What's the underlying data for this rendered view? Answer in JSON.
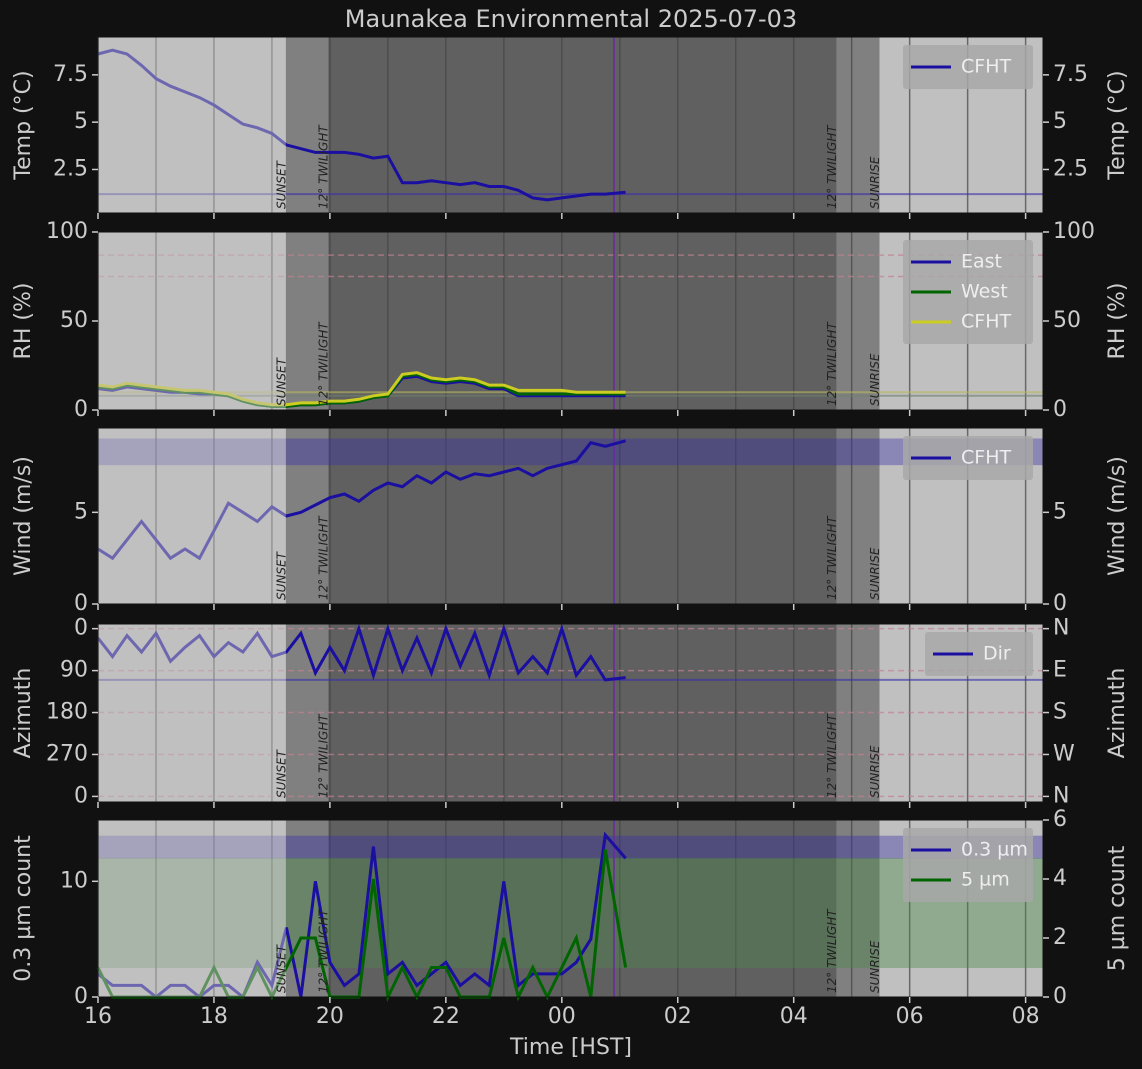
{
  "title": "Maunakea Environmental 2025-07-03",
  "xlabel": "Time [HST]",
  "xlim": [
    16,
    32.3
  ],
  "xticks": [
    16,
    18,
    20,
    22,
    {
      "value": 24,
      "label": "00"
    },
    {
      "value": 26,
      "label": "02"
    },
    {
      "value": 28,
      "label": "04"
    },
    {
      "value": 30,
      "label": "06"
    },
    {
      "value": 32,
      "label": "08"
    }
  ],
  "events": [
    {
      "x": 19.24,
      "label": "SUNSET"
    },
    {
      "x": 19.97,
      "label": "12° TWILIGHT"
    },
    {
      "x": 28.74,
      "label": "12° TWILIGHT"
    },
    {
      "x": 29.48,
      "label": "SUNRISE"
    }
  ],
  "now": 24.9,
  "chart_data": [
    {
      "type": "line",
      "ylabel": "Temp (°C)",
      "ylim": [
        0.2,
        9.5
      ],
      "yticks": [
        2.5,
        5.0,
        7.5
      ],
      "legend": "upper right",
      "x": [
        16,
        16.25,
        16.5,
        16.75,
        17,
        17.25,
        17.5,
        17.75,
        18,
        18.25,
        18.5,
        18.75,
        19,
        19.25,
        19.5,
        19.75,
        20,
        20.25,
        20.5,
        20.75,
        21,
        21.25,
        21.5,
        21.75,
        22,
        22.25,
        22.5,
        22.75,
        23,
        23.25,
        23.5,
        23.75,
        24,
        24.25,
        24.5,
        24.75,
        25.1
      ],
      "series": [
        {
          "name": "CFHT",
          "color": "#1a0fa0",
          "values": [
            8.6,
            8.8,
            8.6,
            8.0,
            7.3,
            6.9,
            6.6,
            6.3,
            5.9,
            5.4,
            4.9,
            4.7,
            4.4,
            3.8,
            3.6,
            3.4,
            3.4,
            3.4,
            3.3,
            3.1,
            3.2,
            1.8,
            1.8,
            1.9,
            1.8,
            1.7,
            1.8,
            1.6,
            1.6,
            1.4,
            1.0,
            0.9,
            1.0,
            1.1,
            1.2,
            1.2,
            1.3
          ]
        }
      ],
      "hlines": [
        {
          "value": 1.2,
          "color": "#3a30a8"
        }
      ]
    },
    {
      "type": "line",
      "ylabel": "RH (%)",
      "ylim": [
        0,
        100
      ],
      "yticks": [
        0,
        50,
        100
      ],
      "legend": "upper right",
      "dashed": [
        75,
        87
      ],
      "x": [
        16,
        16.25,
        16.5,
        16.75,
        17,
        17.25,
        17.5,
        17.75,
        18,
        18.25,
        18.5,
        18.75,
        19,
        19.25,
        19.5,
        19.75,
        20,
        20.25,
        20.5,
        20.75,
        21,
        21.25,
        21.5,
        21.75,
        22,
        22.25,
        22.5,
        22.75,
        23,
        23.25,
        23.5,
        23.75,
        24,
        24.25,
        24.5,
        24.75,
        25.1
      ],
      "series": [
        {
          "name": "East",
          "color": "#1a0fa0",
          "values": [
            12,
            11,
            13,
            12,
            11,
            10,
            10,
            9,
            9,
            8,
            5,
            3,
            2,
            2,
            3,
            3,
            4,
            4,
            5,
            7,
            8,
            18,
            19,
            16,
            15,
            16,
            15,
            12,
            12,
            8,
            8,
            8,
            8,
            8,
            8,
            8,
            8
          ]
        },
        {
          "name": "West",
          "color": "#006400",
          "values": [
            13,
            12,
            14,
            13,
            12,
            11,
            10,
            10,
            9,
            8,
            5,
            3,
            2,
            2,
            3,
            3,
            4,
            4,
            5,
            7,
            8,
            19,
            20,
            17,
            16,
            17,
            16,
            13,
            13,
            9,
            9,
            9,
            9,
            9,
            9,
            9,
            9
          ]
        },
        {
          "name": "CFHT",
          "color": "#cccc22",
          "values": [
            14,
            13,
            15,
            14,
            13,
            12,
            11,
            11,
            10,
            9,
            6,
            4,
            3,
            3,
            4,
            4,
            5,
            5,
            6,
            8,
            9,
            20,
            21,
            18,
            17,
            18,
            17,
            14,
            14,
            11,
            11,
            11,
            11,
            10,
            10,
            10,
            10
          ]
        }
      ],
      "hlines": [
        {
          "value": 10,
          "color": "#b8b860"
        },
        {
          "value": 8,
          "color": "#708070"
        }
      ]
    },
    {
      "type": "line",
      "ylabel": "Wind (m/s)",
      "ylim": [
        0,
        9.6
      ],
      "yticks": [
        0,
        5
      ],
      "legend": "upper right",
      "x": [
        16,
        16.25,
        16.5,
        16.75,
        17,
        17.25,
        17.5,
        17.75,
        18,
        18.25,
        18.5,
        18.75,
        19,
        19.25,
        19.5,
        19.75,
        20,
        20.25,
        20.5,
        20.75,
        21,
        21.25,
        21.5,
        21.75,
        22,
        22.25,
        22.5,
        22.75,
        23,
        23.25,
        23.5,
        23.75,
        24,
        24.25,
        24.5,
        24.75,
        25.1
      ],
      "series": [
        {
          "name": "CFHT",
          "color": "#1a0fa0",
          "values": [
            3,
            2.5,
            3.5,
            4.5,
            3.5,
            2.5,
            3,
            2.5,
            4,
            5.5,
            5,
            4.5,
            5.3,
            4.8,
            5.0,
            5.4,
            5.8,
            6.0,
            5.6,
            6.2,
            6.6,
            6.4,
            7.0,
            6.6,
            7.2,
            6.8,
            7.1,
            7.0,
            7.2,
            7.4,
            7.0,
            7.4,
            7.6,
            7.8,
            8.8,
            8.6,
            8.9
          ]
        }
      ],
      "bands": [
        {
          "range": [
            7.6,
            9.0
          ],
          "color": "#3a30a8"
        }
      ]
    },
    {
      "type": "line",
      "ylabel": "Azimuth",
      "ylim": [
        372,
        -10
      ],
      "yticks": [
        0,
        90,
        180,
        270,
        {
          "value": 360,
          "label": "0"
        }
      ],
      "legend": "upper right",
      "dashed": [
        0,
        90,
        180,
        270,
        360
      ],
      "y2lim": [
        372,
        -10
      ],
      "y2ticks": [
        {
          "value": 0,
          "label": "N"
        },
        {
          "value": 90,
          "label": "E"
        },
        {
          "value": 180,
          "label": "S"
        },
        {
          "value": 270,
          "label": "W"
        },
        {
          "value": 360,
          "label": "N"
        }
      ],
      "x": [
        16,
        16.25,
        16.5,
        16.75,
        17,
        17.25,
        17.5,
        17.75,
        18,
        18.25,
        18.5,
        18.75,
        19,
        19.25,
        19.5,
        19.75,
        20,
        20.25,
        20.5,
        20.75,
        21,
        21.25,
        21.5,
        21.75,
        22,
        22.25,
        22.5,
        22.75,
        23,
        23.25,
        23.5,
        23.75,
        24,
        24.25,
        24.5,
        24.75,
        25.1
      ],
      "series": [
        {
          "name": "Dir",
          "color": "#1a0fa0",
          "values": [
            20,
            60,
            15,
            50,
            10,
            70,
            40,
            15,
            60,
            30,
            50,
            10,
            60,
            50,
            10,
            95,
            40,
            90,
            0,
            100,
            0,
            90,
            20,
            95,
            0,
            80,
            10,
            100,
            0,
            95,
            60,
            95,
            0,
            100,
            60,
            110,
            105
          ]
        }
      ],
      "hlines": [
        {
          "value": 110,
          "color": "#3a30a8"
        }
      ]
    },
    {
      "type": "line",
      "ylabel": "0.3 µm count",
      "y2label": "5 µm count",
      "ylim": [
        0,
        15.3
      ],
      "yticks": [
        0,
        10
      ],
      "y2lim": [
        0,
        6
      ],
      "y2ticks": [
        0,
        2,
        4,
        6
      ],
      "legend": "upper right",
      "x": [
        16,
        16.25,
        16.5,
        16.75,
        17,
        17.25,
        17.5,
        17.75,
        18,
        18.25,
        18.5,
        18.75,
        19,
        19.25,
        19.5,
        19.75,
        20,
        20.25,
        20.5,
        20.75,
        21,
        21.25,
        21.5,
        21.75,
        22,
        22.25,
        22.5,
        22.75,
        23,
        23.25,
        23.5,
        23.75,
        24,
        24.25,
        24.5,
        24.75,
        25.1
      ],
      "series": [
        {
          "name": "0.3 µm",
          "color": "#1a0fa0",
          "values": [
            2,
            1,
            1,
            1,
            0,
            1,
            1,
            0,
            1,
            1,
            0,
            3,
            1,
            6,
            0,
            10,
            3,
            1,
            2,
            13,
            2,
            3,
            1,
            2,
            3,
            1,
            2,
            1,
            10,
            1,
            2,
            2,
            2,
            3,
            5,
            14,
            12
          ]
        },
        {
          "name": "5 µm",
          "color": "#006400",
          "axis": "y2",
          "values": [
            1,
            0,
            0,
            0,
            0,
            0,
            0,
            0,
            1,
            0,
            0,
            1,
            0,
            1,
            2,
            2,
            0,
            0,
            0,
            4,
            0,
            1,
            0,
            1,
            1,
            0,
            0,
            0,
            2,
            0,
            1,
            0,
            1,
            2,
            0,
            5,
            1
          ]
        }
      ],
      "bands": [
        {
          "range": [
            12,
            13.9
          ],
          "color": "#3a30a8"
        },
        {
          "range": [
            1.0,
            4.7
          ],
          "color": "#4a8a4a",
          "axis": "y2"
        }
      ]
    }
  ]
}
